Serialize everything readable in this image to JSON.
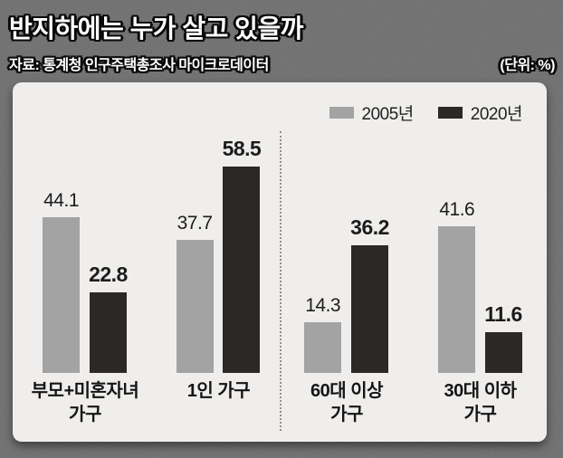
{
  "header": {
    "title": "반지하에는 누가 살고 있을까",
    "source": "자료: 통계청 인구주택총조사 마이크로데이터",
    "unit": "(단위: %)"
  },
  "legend": [
    {
      "label": "2005년",
      "color": "#a3a3a3"
    },
    {
      "label": "2020년",
      "color": "#2b2827"
    }
  ],
  "chart_data": {
    "type": "bar",
    "categories": [
      "부모+미혼자녀\n가구",
      "1인 가구",
      "60대 이상\n가구",
      "30대 이하\n가구"
    ],
    "series": [
      {
        "name": "2005년",
        "color": "#a3a3a3",
        "values": [
          44.1,
          37.7,
          14.3,
          41.6
        ]
      },
      {
        "name": "2020년",
        "color": "#2b2827",
        "values": [
          22.8,
          58.5,
          36.2,
          11.6
        ]
      }
    ],
    "title": "반지하에는 누가 살고 있을까",
    "xlabel": "",
    "ylabel": "",
    "unit": "%",
    "ylim": [
      0,
      60
    ],
    "grid": false,
    "legend_position": "top-right",
    "group_split_after": 2
  },
  "colors": {
    "background": "#6d6d6d",
    "panel": "#efeeec",
    "divider": "#8f8f8f"
  }
}
